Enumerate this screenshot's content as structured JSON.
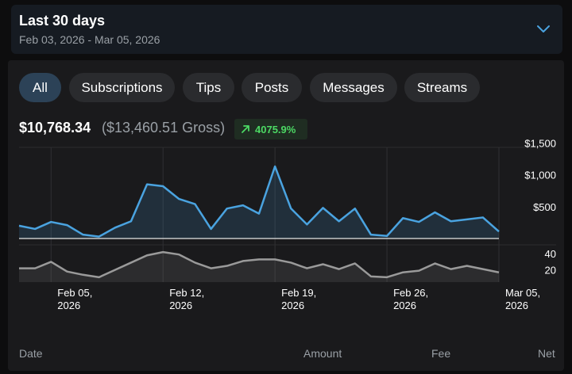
{
  "range": {
    "title": "Last 30 days",
    "dates": "Feb 03, 2026 - Mar 05, 2026"
  },
  "filters": [
    {
      "label": "All",
      "active": true
    },
    {
      "label": "Subscriptions",
      "active": false
    },
    {
      "label": "Tips",
      "active": false
    },
    {
      "label": "Posts",
      "active": false
    },
    {
      "label": "Messages",
      "active": false
    },
    {
      "label": "Streams",
      "active": false
    }
  ],
  "summary": {
    "net": "$10,768.34",
    "gross": "($13,460.51 Gross)",
    "change": "4075.9%"
  },
  "colors": {
    "accent": "#4aa3e0",
    "positive": "#4cd964",
    "secondary_line": "#9a9a9a"
  },
  "table_headers": [
    "Date",
    "Amount",
    "Fee",
    "Net"
  ],
  "chart_data": [
    {
      "type": "area",
      "title": "",
      "xlabel": "",
      "ylabel": "",
      "x": [
        "2026-02-03",
        "2026-02-04",
        "2026-02-05",
        "2026-02-06",
        "2026-02-07",
        "2026-02-08",
        "2026-02-09",
        "2026-02-10",
        "2026-02-11",
        "2026-02-12",
        "2026-02-13",
        "2026-02-14",
        "2026-02-15",
        "2026-02-16",
        "2026-02-17",
        "2026-02-18",
        "2026-02-19",
        "2026-02-20",
        "2026-02-21",
        "2026-02-22",
        "2026-02-23",
        "2026-02-24",
        "2026-02-25",
        "2026-02-26",
        "2026-02-27",
        "2026-02-28",
        "2026-03-01",
        "2026-03-02",
        "2026-03-03",
        "2026-03-04",
        "2026-03-05"
      ],
      "series": [
        {
          "values": [
            200,
            150,
            260,
            210,
            60,
            30,
            170,
            270,
            850,
            820,
            620,
            540,
            150,
            470,
            520,
            390,
            1130,
            470,
            220,
            480,
            270,
            470,
            60,
            40,
            320,
            260,
            410,
            270,
            300,
            330,
            110
          ]
        }
      ],
      "y_ticks": [
        {
          "value": 500,
          "label": "$500"
        },
        {
          "value": 1000,
          "label": "$1,000"
        },
        {
          "value": 1500,
          "label": "$1,500"
        }
      ],
      "ylim": [
        0,
        1400
      ],
      "x_ticks": [
        {
          "date": "2026-02-05",
          "label1": "Feb 05,",
          "label2": "2026"
        },
        {
          "date": "2026-02-12",
          "label1": "Feb 12,",
          "label2": "2026"
        },
        {
          "date": "2026-02-19",
          "label1": "Feb 19,",
          "label2": "2026"
        },
        {
          "date": "2026-02-26",
          "label1": "Feb 26,",
          "label2": "2026"
        },
        {
          "date": "2026-03-05",
          "label1": "Mar 05,",
          "label2": "2026"
        }
      ],
      "grid": true
    },
    {
      "type": "area",
      "title": "",
      "xlabel": "",
      "ylabel": "",
      "x": [
        "2026-02-03",
        "2026-02-04",
        "2026-02-05",
        "2026-02-06",
        "2026-02-07",
        "2026-02-08",
        "2026-02-09",
        "2026-02-10",
        "2026-02-11",
        "2026-02-12",
        "2026-02-13",
        "2026-02-14",
        "2026-02-15",
        "2026-02-16",
        "2026-02-17",
        "2026-02-18",
        "2026-02-19",
        "2026-02-20",
        "2026-02-21",
        "2026-02-22",
        "2026-02-23",
        "2026-02-24",
        "2026-02-25",
        "2026-02-26",
        "2026-02-27",
        "2026-02-28",
        "2026-03-01",
        "2026-03-02",
        "2026-03-03",
        "2026-03-04",
        "2026-03-05"
      ],
      "series": [
        {
          "values": [
            22,
            22,
            30,
            18,
            14,
            11,
            20,
            29,
            38,
            42,
            39,
            29,
            22,
            25,
            31,
            33,
            33,
            29,
            22,
            27,
            21,
            28,
            12,
            11,
            17,
            19,
            28,
            21,
            25,
            21,
            17
          ]
        }
      ],
      "y_ticks": [
        {
          "value": 20,
          "label": "20"
        },
        {
          "value": 40,
          "label": "40"
        }
      ],
      "ylim": [
        5,
        50
      ],
      "grid": true
    }
  ]
}
